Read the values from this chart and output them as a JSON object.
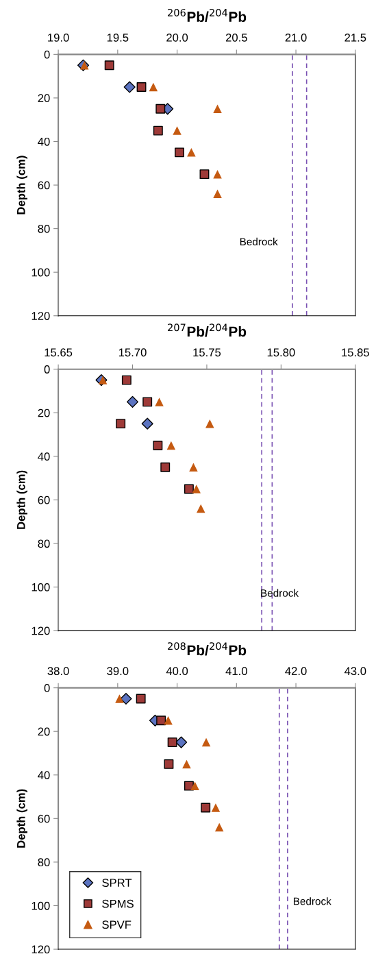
{
  "chart_data": [
    {
      "type": "scatter",
      "title": "$^{206}$Pb/$^{204}$Pb",
      "ylabel": "Depth (cm)",
      "xlim": [
        19.0,
        21.5
      ],
      "xticks": [
        {
          "value": 19.0,
          "label": "19.0"
        },
        {
          "value": 19.5,
          "label": "19.5"
        },
        {
          "value": 20.0,
          "label": "20.0"
        },
        {
          "value": 20.5,
          "label": "20.5"
        },
        {
          "value": 21.0,
          "label": "21.0"
        },
        {
          "value": 21.5,
          "label": "21.5"
        }
      ],
      "ylim": [
        120,
        0
      ],
      "yticks": [
        0,
        20,
        40,
        60,
        80,
        100,
        120
      ],
      "grid": false,
      "legend": false,
      "series": [
        {
          "color": "#5b73c0",
          "marker": "diamond",
          "x": [
            19.21,
            19.6,
            19.92
          ],
          "values": [
            5,
            15,
            25
          ]
        },
        {
          "color": "#9e3a38",
          "marker": "square",
          "x": [
            19.43,
            19.7,
            19.86,
            19.84,
            20.02,
            20.23
          ],
          "values": [
            5,
            15,
            25,
            35,
            45,
            55
          ]
        },
        {
          "color": "#c55a11",
          "marker": "triangle",
          "x": [
            19.22,
            19.8,
            20.34,
            20.0,
            20.12,
            20.34,
            20.34
          ],
          "values": [
            5,
            15,
            25,
            35,
            45,
            55,
            64
          ]
        }
      ],
      "ref_lines": [
        {
          "axis": "x",
          "value": 20.97,
          "color": "#7a52b3",
          "line_style": "dashed"
        },
        {
          "axis": "x",
          "value": 21.09,
          "color": "#7a52b3",
          "line_style": "dashed"
        }
      ],
      "annotations": [
        "Bedrock"
      ]
    },
    {
      "type": "scatter",
      "title": "$^{207}$Pb/$^{204}$Pb",
      "ylabel": "Depth (cm)",
      "xlim": [
        15.65,
        15.85
      ],
      "xticks": [
        15.65,
        {
          "value": 15.7,
          "label": "15.70"
        },
        15.75,
        {
          "value": 15.8,
          "label": "15.80"
        },
        15.85
      ],
      "ylim": [
        120,
        0
      ],
      "yticks": [
        0,
        20,
        40,
        60,
        80,
        100,
        120
      ],
      "grid": false,
      "legend": false,
      "series": [
        {
          "color": "#5b73c0",
          "marker": "diamond",
          "x": [
            15.679,
            15.7,
            15.71
          ],
          "values": [
            5,
            15,
            25
          ]
        },
        {
          "color": "#9e3a38",
          "marker": "square",
          "x": [
            15.696,
            15.71,
            15.692,
            15.717,
            15.722,
            15.738
          ],
          "values": [
            5,
            15,
            25,
            35,
            45,
            55
          ]
        },
        {
          "color": "#c55a11",
          "marker": "triangle",
          "x": [
            15.68,
            15.718,
            15.752,
            15.726,
            15.741,
            15.743,
            15.746
          ],
          "values": [
            5,
            15,
            25,
            35,
            45,
            55,
            64
          ]
        }
      ],
      "ref_lines": [
        {
          "axis": "x",
          "value": 15.787,
          "color": "#7a52b3",
          "line_style": "dashed"
        },
        {
          "axis": "x",
          "value": 15.794,
          "color": "#7a52b3",
          "line_style": "dashed"
        }
      ],
      "annotations": [
        "Bedrock"
      ]
    },
    {
      "type": "scatter",
      "title": "$^{208}$Pb/$^{204}$Pb",
      "ylabel": "Depth (cm)",
      "xlim": [
        38.0,
        43.0
      ],
      "xticks": [
        {
          "value": 38.0,
          "label": "38.0"
        },
        {
          "value": 39.0,
          "label": "39.0"
        },
        {
          "value": 40.0,
          "label": "40.0"
        },
        {
          "value": 41.0,
          "label": "41.0"
        },
        {
          "value": 42.0,
          "label": "42.0"
        },
        {
          "value": 43.0,
          "label": "43.0"
        }
      ],
      "ylim": [
        120,
        0
      ],
      "yticks": [
        0,
        20,
        40,
        60,
        80,
        100,
        120
      ],
      "grid": false,
      "legend": "bottom left",
      "series": [
        {
          "name": "SPRT",
          "color": "#5b73c0",
          "marker": "diamond",
          "x": [
            39.14,
            39.63,
            40.07
          ],
          "values": [
            5,
            15,
            25
          ]
        },
        {
          "name": "SPMS",
          "color": "#9e3a38",
          "marker": "square",
          "x": [
            39.39,
            39.73,
            39.92,
            39.86,
            40.2,
            40.48
          ],
          "values": [
            5,
            15,
            25,
            35,
            45,
            55
          ]
        },
        {
          "name": "SPVF",
          "color": "#c55a11",
          "marker": "triangle",
          "x": [
            39.03,
            39.85,
            40.49,
            40.16,
            40.3,
            40.65,
            40.71
          ],
          "values": [
            5,
            15,
            25,
            35,
            45,
            55,
            64
          ]
        }
      ],
      "ref_lines": [
        {
          "axis": "x",
          "value": 41.72,
          "color": "#7a52b3",
          "line_style": "dashed"
        },
        {
          "axis": "x",
          "value": 41.86,
          "color": "#7a52b3",
          "line_style": "dashed"
        }
      ],
      "annotations": [
        "Bedrock"
      ]
    }
  ]
}
